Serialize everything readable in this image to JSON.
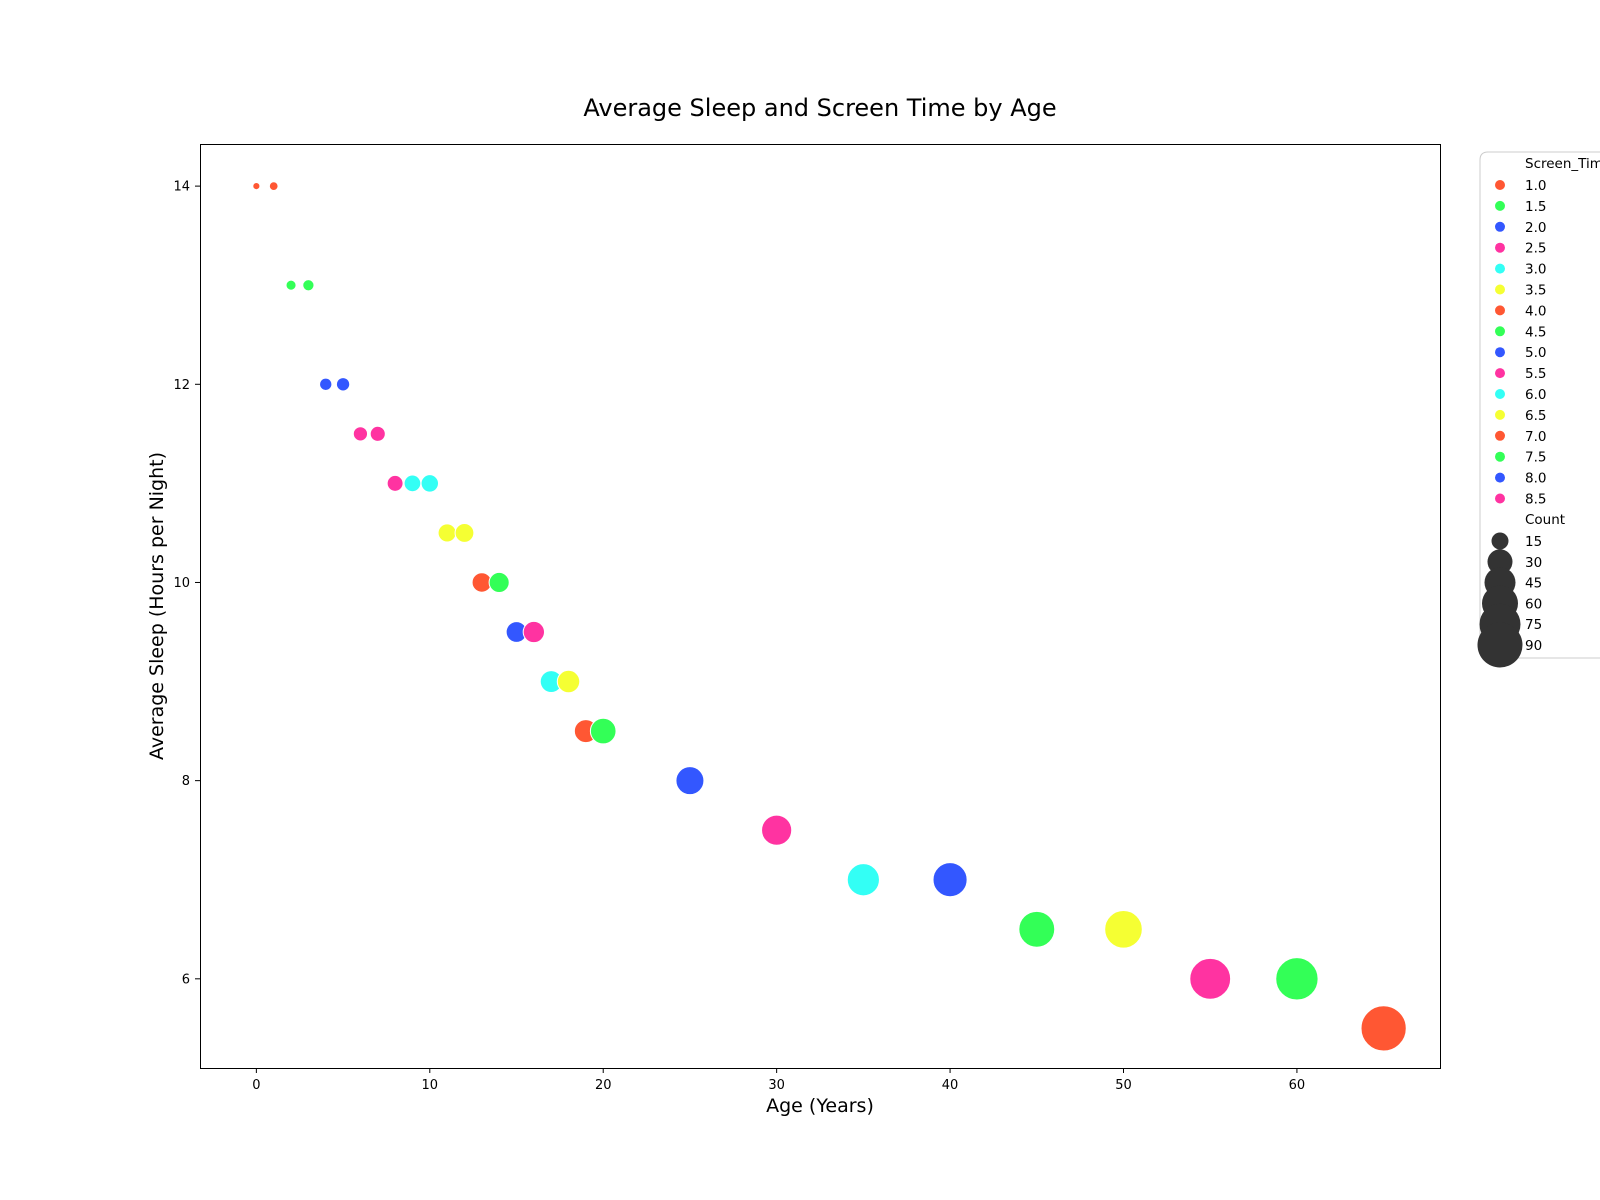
{
  "chart_data": {
    "type": "scatter",
    "title": "Average Sleep and Screen Time by Age",
    "xlabel": "Age (Years)",
    "ylabel": "Average Sleep (Hours per Night)",
    "xlim": [
      -3.25,
      68.25
    ],
    "ylim": [
      5.1,
      14.425
    ],
    "xticks": [
      0,
      10,
      20,
      30,
      40,
      50,
      60
    ],
    "yticks": [
      6,
      8,
      10,
      12,
      14
    ],
    "grid": false,
    "legend_position": "outside-right",
    "hue_title": "Screen_Time",
    "size_title": "Count",
    "hue_levels": [
      {
        "label": "1.0",
        "color": "#ff5733"
      },
      {
        "label": "1.5",
        "color": "#33ff57"
      },
      {
        "label": "2.0",
        "color": "#3357ff"
      },
      {
        "label": "2.5",
        "color": "#ff33a1"
      },
      {
        "label": "3.0",
        "color": "#33fff5"
      },
      {
        "label": "3.5",
        "color": "#f5ff33"
      },
      {
        "label": "4.0",
        "color": "#ff5733"
      },
      {
        "label": "4.5",
        "color": "#33ff57"
      },
      {
        "label": "5.0",
        "color": "#3357ff"
      },
      {
        "label": "5.5",
        "color": "#ff33a1"
      },
      {
        "label": "6.0",
        "color": "#33fff5"
      },
      {
        "label": "6.5",
        "color": "#f5ff33"
      },
      {
        "label": "7.0",
        "color": "#ff5733"
      },
      {
        "label": "7.5",
        "color": "#33ff57"
      },
      {
        "label": "8.0",
        "color": "#3357ff"
      },
      {
        "label": "8.5",
        "color": "#ff33a1"
      }
    ],
    "size_levels": [
      "15",
      "30",
      "45",
      "60",
      "75",
      "90"
    ],
    "size_color": "#333333",
    "points": [
      {
        "x": 0,
        "y": 14,
        "screen_time": 1.0,
        "count": 1,
        "color": "#ff5733"
      },
      {
        "x": 1,
        "y": 14,
        "screen_time": 1.0,
        "count": 2,
        "color": "#ff5733"
      },
      {
        "x": 2,
        "y": 13,
        "screen_time": 1.5,
        "count": 3,
        "color": "#33ff57"
      },
      {
        "x": 3,
        "y": 13,
        "screen_time": 1.5,
        "count": 4,
        "color": "#33ff57"
      },
      {
        "x": 4,
        "y": 12,
        "screen_time": 2.0,
        "count": 5,
        "color": "#3357ff"
      },
      {
        "x": 5,
        "y": 12,
        "screen_time": 2.0,
        "count": 6,
        "color": "#3357ff"
      },
      {
        "x": 6,
        "y": 11.5,
        "screen_time": 2.5,
        "count": 7,
        "color": "#ff33a1"
      },
      {
        "x": 7,
        "y": 11.5,
        "screen_time": 2.5,
        "count": 8,
        "color": "#ff33a1"
      },
      {
        "x": 8,
        "y": 11,
        "screen_time": 2.5,
        "count": 9,
        "color": "#ff33a1"
      },
      {
        "x": 9,
        "y": 11,
        "screen_time": 3.0,
        "count": 10,
        "color": "#33fff5"
      },
      {
        "x": 10,
        "y": 11,
        "screen_time": 3.0,
        "count": 11,
        "color": "#33fff5"
      },
      {
        "x": 11,
        "y": 10.5,
        "screen_time": 3.5,
        "count": 12,
        "color": "#f5ff33"
      },
      {
        "x": 12,
        "y": 10.5,
        "screen_time": 3.5,
        "count": 13,
        "color": "#f5ff33"
      },
      {
        "x": 13,
        "y": 10,
        "screen_time": 4.0,
        "count": 14,
        "color": "#ff5733"
      },
      {
        "x": 14,
        "y": 10,
        "screen_time": 4.5,
        "count": 15,
        "color": "#33ff57"
      },
      {
        "x": 15,
        "y": 9.5,
        "screen_time": 5.0,
        "count": 16,
        "color": "#3357ff"
      },
      {
        "x": 16,
        "y": 9.5,
        "screen_time": 5.5,
        "count": 17,
        "color": "#ff33a1"
      },
      {
        "x": 17,
        "y": 9,
        "screen_time": 6.0,
        "count": 18,
        "color": "#33fff5"
      },
      {
        "x": 18,
        "y": 9,
        "screen_time": 6.5,
        "count": 19,
        "color": "#f5ff33"
      },
      {
        "x": 19,
        "y": 8.5,
        "screen_time": 7.0,
        "count": 20,
        "color": "#ff5733"
      },
      {
        "x": 20,
        "y": 8.5,
        "screen_time": 7.5,
        "count": 25,
        "color": "#33ff57"
      },
      {
        "x": 25,
        "y": 8,
        "screen_time": 8.0,
        "count": 30,
        "color": "#3357ff"
      },
      {
        "x": 30,
        "y": 7.5,
        "screen_time": 8.5,
        "count": 35,
        "color": "#ff33a1"
      },
      {
        "x": 35,
        "y": 7,
        "screen_time": 6.0,
        "count": 40,
        "color": "#33fff5"
      },
      {
        "x": 40,
        "y": 7,
        "screen_time": 5.0,
        "count": 45,
        "color": "#3357ff"
      },
      {
        "x": 45,
        "y": 6.5,
        "screen_time": 4.5,
        "count": 50,
        "color": "#33ff57"
      },
      {
        "x": 50,
        "y": 6.5,
        "screen_time": 6.5,
        "count": 55,
        "color": "#f5ff33"
      },
      {
        "x": 55,
        "y": 6,
        "screen_time": 5.5,
        "count": 65,
        "color": "#ff33a1"
      },
      {
        "x": 60,
        "y": 6,
        "screen_time": 7.5,
        "count": 70,
        "color": "#33ff57"
      },
      {
        "x": 65,
        "y": 5.5,
        "screen_time": 7.0,
        "count": 80,
        "color": "#ff5733"
      }
    ]
  }
}
